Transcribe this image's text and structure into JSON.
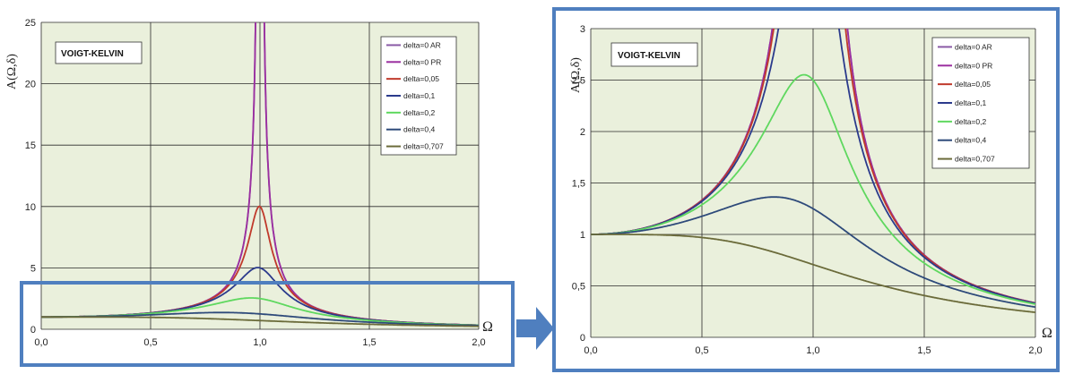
{
  "chart_data": [
    {
      "type": "line",
      "title": "VOIGT-KELVIN",
      "ylabel": "A(Ω,δ)",
      "xlabel": "Ω",
      "xlim": [
        0,
        2
      ],
      "ylim": [
        0,
        25
      ],
      "x_ticks": [
        "0,0",
        "0,5",
        "1,0",
        "1,5",
        "2,0"
      ],
      "y_ticks": [
        "0",
        "5",
        "10",
        "15",
        "20",
        "25"
      ],
      "grid": true,
      "legend_position": "top-right",
      "series": [
        {
          "name": "delta=0 AR",
          "delta": 0,
          "color": "#8a5aa6"
        },
        {
          "name": "delta=0 PR",
          "delta": 0,
          "color": "#9b2fa0"
        },
        {
          "name": "delta=0,05",
          "delta": 0.05,
          "color": "#c0392b"
        },
        {
          "name": "delta=0,1",
          "delta": 0.1,
          "color": "#2b3a8c"
        },
        {
          "name": "delta=0,2",
          "delta": 0.2,
          "color": "#5fd85f"
        },
        {
          "name": "delta=0,4",
          "delta": 0.4,
          "color": "#2e4a7a"
        },
        {
          "name": "delta=0,707",
          "delta": 0.707,
          "color": "#6b6b3a"
        }
      ]
    },
    {
      "type": "line",
      "title": "VOIGT-KELVIN",
      "ylabel": "A(Ω,δ)",
      "xlabel": "Ω",
      "xlim": [
        0,
        2
      ],
      "ylim": [
        0,
        3
      ],
      "x_ticks": [
        "0,0",
        "0,5",
        "1,0",
        "1,5",
        "2,0"
      ],
      "y_ticks": [
        "0",
        "0,5",
        "1",
        "1,5",
        "2",
        "2,5",
        "3"
      ],
      "grid": true,
      "legend_position": "top-right",
      "series": [
        {
          "name": "delta=0 AR",
          "delta": 0,
          "color": "#8a5aa6"
        },
        {
          "name": "delta=0 PR",
          "delta": 0,
          "color": "#9b2fa0"
        },
        {
          "name": "delta=0,05",
          "delta": 0.05,
          "color": "#c0392b"
        },
        {
          "name": "delta=0,1",
          "delta": 0.1,
          "color": "#2b3a8c"
        },
        {
          "name": "delta=0,2",
          "delta": 0.2,
          "color": "#5fd85f"
        },
        {
          "name": "delta=0,4",
          "delta": 0.4,
          "color": "#2e4a7a"
        },
        {
          "name": "delta=0,707",
          "delta": 0.707,
          "color": "#6b6b3a"
        }
      ]
    }
  ],
  "colors": {
    "plot_bg": "#eaf0dc",
    "grid": "#222222",
    "frame": "#4f7fbf",
    "arrow": "#4f7fbf"
  }
}
